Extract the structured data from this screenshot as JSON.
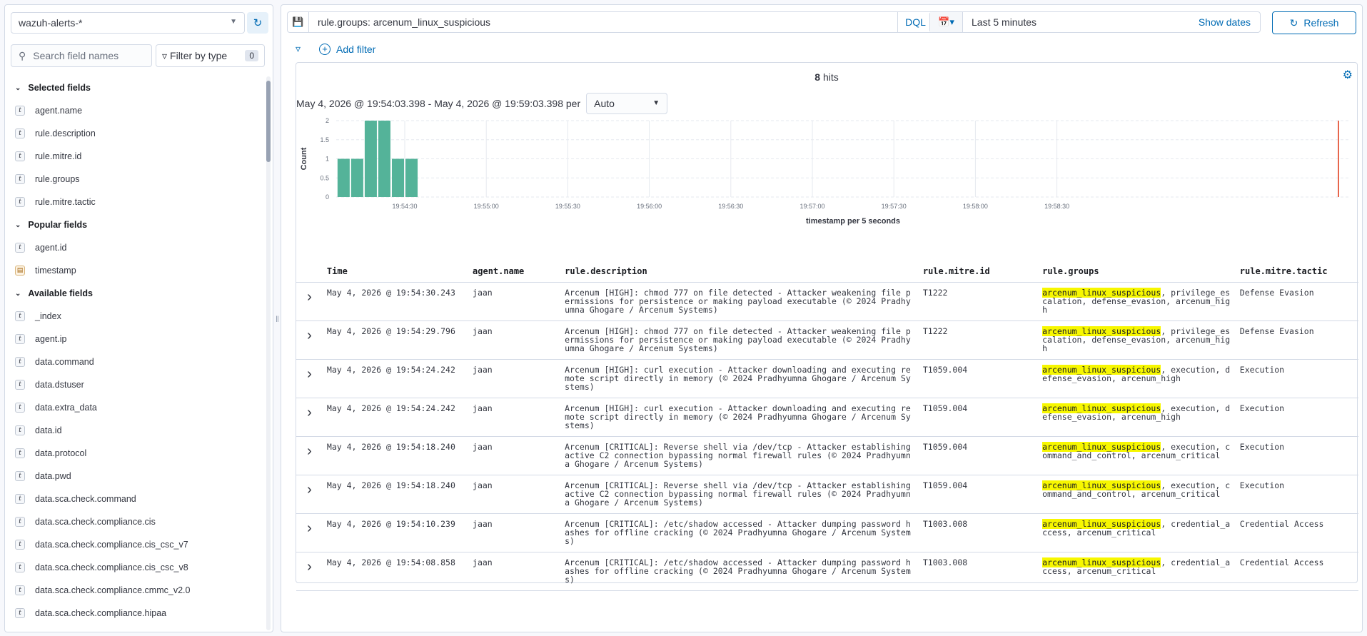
{
  "sidebar": {
    "index_pattern": "wazuh-alerts-*",
    "search_placeholder": "Search field names",
    "filter_type_label": "Filter by type",
    "filter_type_count": "0",
    "sections": [
      {
        "title": "Selected fields",
        "fields": [
          {
            "name": "agent.name",
            "type": "t"
          },
          {
            "name": "rule.description",
            "type": "t"
          },
          {
            "name": "rule.mitre.id",
            "type": "t"
          },
          {
            "name": "rule.groups",
            "type": "t"
          },
          {
            "name": "rule.mitre.tactic",
            "type": "t"
          }
        ]
      },
      {
        "title": "Popular fields",
        "fields": [
          {
            "name": "agent.id",
            "type": "t"
          },
          {
            "name": "timestamp",
            "type": "date"
          }
        ]
      },
      {
        "title": "Available fields",
        "fields": [
          {
            "name": "_index",
            "type": "t"
          },
          {
            "name": "agent.ip",
            "type": "t"
          },
          {
            "name": "data.command",
            "type": "t"
          },
          {
            "name": "data.dstuser",
            "type": "t"
          },
          {
            "name": "data.extra_data",
            "type": "t"
          },
          {
            "name": "data.id",
            "type": "t"
          },
          {
            "name": "data.protocol",
            "type": "t"
          },
          {
            "name": "data.pwd",
            "type": "t"
          },
          {
            "name": "data.sca.check.command",
            "type": "t"
          },
          {
            "name": "data.sca.check.compliance.cis",
            "type": "t"
          },
          {
            "name": "data.sca.check.compliance.cis_csc_v7",
            "type": "t"
          },
          {
            "name": "data.sca.check.compliance.cis_csc_v8",
            "type": "t"
          },
          {
            "name": "data.sca.check.compliance.cmmc_v2.0",
            "type": "t"
          },
          {
            "name": "data.sca.check.compliance.hipaa",
            "type": "t"
          }
        ]
      }
    ]
  },
  "query": {
    "text": "rule.groups: arcenum_linux_suspicious",
    "language": "DQL",
    "time_range": "Last 5 minutes",
    "show_dates": "Show dates",
    "refresh": "Refresh",
    "add_filter": "Add filter"
  },
  "results": {
    "hits_count": "8",
    "hits_label": "hits",
    "range_text": "May 4, 2026 @ 19:54:03.398 - May 4, 2026 @ 19:59:03.398 per",
    "interval": "Auto"
  },
  "chart_data": {
    "type": "bar",
    "ylabel": "Count",
    "xlabel": "timestamp per 5 seconds",
    "ylim": [
      0,
      2
    ],
    "yticks": [
      "0",
      "0.5",
      "1",
      "1.5",
      "2"
    ],
    "xticks": [
      "19:54:30",
      "19:55:00",
      "19:55:30",
      "19:56:00",
      "19:56:30",
      "19:57:00",
      "19:57:30",
      "19:58:00",
      "19:58:30"
    ],
    "bar_color": "#54b399",
    "categories": [
      "19:54:05",
      "19:54:10",
      "19:54:15",
      "19:54:20",
      "19:54:25",
      "19:54:30"
    ],
    "values": [
      1,
      1,
      2,
      2,
      1,
      1
    ]
  },
  "table": {
    "columns": [
      "Time",
      "agent.name",
      "rule.description",
      "rule.mitre.id",
      "rule.groups",
      "rule.mitre.tactic"
    ],
    "highlight": "arcenum_linux_suspicious",
    "rows": [
      {
        "time": "May 4, 2026 @ 19:54:30.243",
        "agent": "jaan",
        "desc": "Arcenum [HIGH]: chmod 777 on file detected - Attacker weakening file permissions for persistence or making payload executable (© 2024 Pradhyumna Ghogare / Arcenum Systems)",
        "mitre_id": "T1222",
        "groups_rest": ", privilege_escalation, defense_evasion, arcenum_high",
        "tactic": "Defense Evasion"
      },
      {
        "time": "May 4, 2026 @ 19:54:29.796",
        "agent": "jaan",
        "desc": "Arcenum [HIGH]: chmod 777 on file detected - Attacker weakening file permissions for persistence or making payload executable (© 2024 Pradhyumna Ghogare / Arcenum Systems)",
        "mitre_id": "T1222",
        "groups_rest": ", privilege_escalation, defense_evasion, arcenum_high",
        "tactic": "Defense Evasion"
      },
      {
        "time": "May 4, 2026 @ 19:54:24.242",
        "agent": "jaan",
        "desc": "Arcenum [HIGH]: curl execution - Attacker downloading and executing remote script directly in memory (© 2024 Pradhyumna Ghogare / Arcenum Systems)",
        "mitre_id": "T1059.004",
        "groups_rest": ", execution, defense_evasion, arcenum_high",
        "tactic": "Execution"
      },
      {
        "time": "May 4, 2026 @ 19:54:24.242",
        "agent": "jaan",
        "desc": "Arcenum [HIGH]: curl execution - Attacker downloading and executing remote script directly in memory (© 2024 Pradhyumna Ghogare / Arcenum Systems)",
        "mitre_id": "T1059.004",
        "groups_rest": ", execution, defense_evasion, arcenum_high",
        "tactic": "Execution"
      },
      {
        "time": "May 4, 2026 @ 19:54:18.240",
        "agent": "jaan",
        "desc": "Arcenum [CRITICAL]: Reverse shell via /dev/tcp - Attacker establishing active C2 connection bypassing normal firewall rules (© 2024 Pradhyumna Ghogare / Arcenum Systems)",
        "mitre_id": "T1059.004",
        "groups_rest": ", execution, command_and_control, arcenum_critical",
        "tactic": "Execution"
      },
      {
        "time": "May 4, 2026 @ 19:54:18.240",
        "agent": "jaan",
        "desc": "Arcenum [CRITICAL]: Reverse shell via /dev/tcp - Attacker establishing active C2 connection bypassing normal firewall rules (© 2024 Pradhyumna Ghogare / Arcenum Systems)",
        "mitre_id": "T1059.004",
        "groups_rest": ", execution, command_and_control, arcenum_critical",
        "tactic": "Execution"
      },
      {
        "time": "May 4, 2026 @ 19:54:10.239",
        "agent": "jaan",
        "desc": "Arcenum [CRITICAL]: /etc/shadow accessed - Attacker dumping password hashes for offline cracking (© 2024 Pradhyumna Ghogare / Arcenum Systems)",
        "mitre_id": "T1003.008",
        "groups_rest": ", credential_access, arcenum_critical",
        "tactic": "Credential Access"
      },
      {
        "time": "May 4, 2026 @ 19:54:08.858",
        "agent": "jaan",
        "desc": "Arcenum [CRITICAL]: /etc/shadow accessed - Attacker dumping password hashes for offline cracking (© 2024 Pradhyumna Ghogare / Arcenum Systems)",
        "mitre_id": "T1003.008",
        "groups_rest": ", credential_access, arcenum_critical",
        "tactic": "Credential Access"
      }
    ]
  }
}
